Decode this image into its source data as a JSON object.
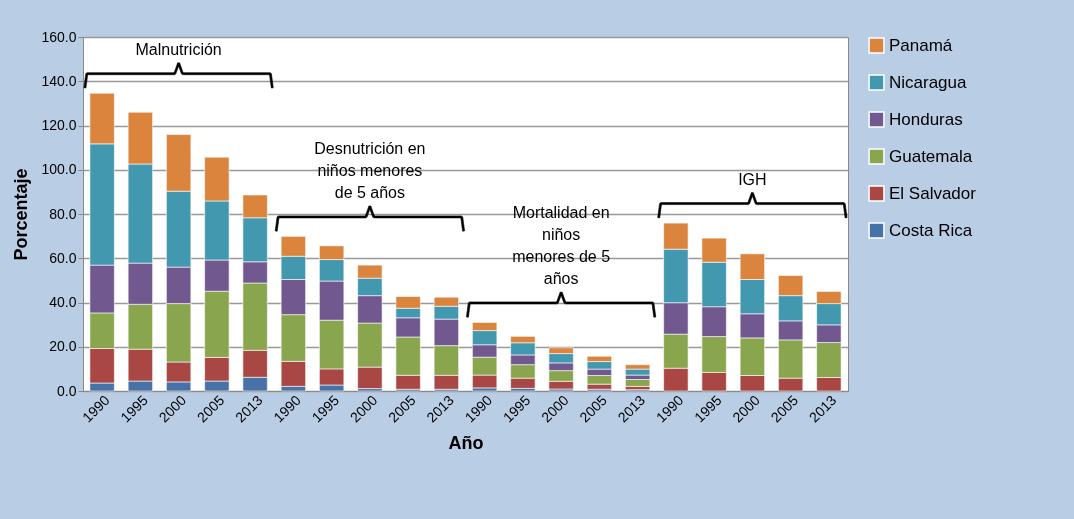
{
  "chart_data": {
    "type": "bar",
    "stacked": true,
    "xlabel": "Año",
    "ylabel": "Porcentaje",
    "categories": [
      "1990",
      "1995",
      "2000",
      "2005",
      "2013",
      "1990",
      "1995",
      "2000",
      "2005",
      "2013",
      "1990",
      "1995",
      "2000",
      "2005",
      "2013",
      "1990",
      "1995",
      "2000",
      "2005",
      "2013"
    ],
    "series": [
      {
        "name": "Costa Rica",
        "color": "#4672a8",
        "values": [
          3.6,
          4.5,
          4.1,
          4.5,
          6.2,
          2.1,
          2.7,
          1.1,
          0.8,
          0.8,
          1.4,
          1.2,
          0.9,
          0.8,
          0.6,
          null,
          null,
          null,
          null,
          null
        ]
      },
      {
        "name": "El Salvador",
        "color": "#a94744",
        "values": [
          15.6,
          14.4,
          9.0,
          10.7,
          12.2,
          11.3,
          7.3,
          9.7,
          6.3,
          6.3,
          5.8,
          4.6,
          3.5,
          2.3,
          1.5,
          10.3,
          8.4,
          7.0,
          5.8,
          6.1
        ]
      },
      {
        "name": "Guatemala",
        "color": "#89a54e",
        "values": [
          16.1,
          20.3,
          26.4,
          29.9,
          30.4,
          21.1,
          22.0,
          19.9,
          17.3,
          13.4,
          8.1,
          6.1,
          4.8,
          3.9,
          3.1,
          15.4,
          16.2,
          17.0,
          17.3,
          15.8
        ]
      },
      {
        "name": "Honduras",
        "color": "#71588f",
        "values": [
          21.6,
          18.6,
          16.5,
          14.1,
          9.6,
          15.9,
          17.7,
          12.4,
          8.7,
          12.0,
          5.6,
          4.4,
          3.5,
          2.9,
          2.0,
          14.2,
          13.5,
          10.9,
          8.6,
          8.0
        ]
      },
      {
        "name": "Nicaragua",
        "color": "#4198af",
        "values": [
          54.8,
          44.8,
          34.3,
          26.7,
          19.9,
          10.5,
          9.7,
          7.9,
          4.3,
          5.8,
          6.4,
          5.5,
          4.2,
          3.4,
          2.7,
          24.2,
          20.1,
          15.5,
          11.4,
          9.6
        ]
      },
      {
        "name": "Panamá",
        "color": "#db843d",
        "values": [
          22.9,
          23.4,
          25.6,
          19.8,
          10.3,
          9.0,
          6.2,
          5.9,
          5.3,
          4.1,
          3.7,
          2.9,
          2.6,
          2.4,
          2.0,
          11.8,
          10.9,
          11.6,
          9.1,
          5.5
        ]
      }
    ],
    "annotations": [
      "Malnutrición",
      "Desnutrición en\nniños menores\nde 5 años",
      "Mortalidad en\nniños\nmenores de 5\naños",
      "IGH"
    ],
    "ylim": [
      0,
      160
    ],
    "yticks": [
      {
        "value": 0,
        "label": "0.0"
      },
      {
        "value": 20,
        "label": "20.0"
      },
      {
        "value": 40,
        "label": "40.0"
      },
      {
        "value": 60,
        "label": "60.0"
      },
      {
        "value": 80,
        "label": "80.0"
      },
      {
        "value": 100,
        "label": "100.0"
      },
      {
        "value": 120,
        "label": "120.0"
      },
      {
        "value": 140,
        "label": "140.0"
      },
      {
        "value": 160,
        "label": "160.0"
      }
    ],
    "grid": "y",
    "legend": "right"
  }
}
